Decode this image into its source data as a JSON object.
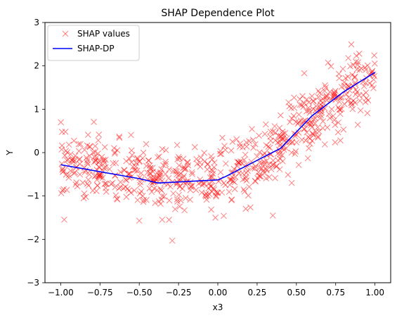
{
  "chart_data": {
    "type": "scatter",
    "title": "SHAP Dependence Plot",
    "xlabel": "x3",
    "ylabel": "Y",
    "xlim": [
      -1.1,
      1.1
    ],
    "ylim": [
      -3,
      3
    ],
    "xticks": [
      -1.0,
      -0.75,
      -0.5,
      -0.25,
      0.0,
      0.25,
      0.5,
      0.75,
      1.0
    ],
    "xtick_labels": [
      "−1.00",
      "−0.75",
      "−0.50",
      "−0.25",
      "0.00",
      "0.25",
      "0.50",
      "0.75",
      "1.00"
    ],
    "yticks": [
      -3,
      -2,
      -1,
      0,
      1,
      2,
      3
    ],
    "ytick_labels": [
      "−3",
      "−2",
      "−1",
      "0",
      "1",
      "2",
      "3"
    ],
    "grid": false,
    "legend_position": "top-left",
    "series": [
      {
        "name": "SHAP values",
        "kind": "scatter",
        "marker": "x",
        "color": "#ff0000",
        "opacity": 0.5,
        "trend": {
          "x": [
            -1.0,
            -0.75,
            -0.5,
            -0.38,
            -0.25,
            0.0,
            0.1,
            0.25,
            0.38,
            0.5,
            0.75,
            1.0
          ],
          "y": [
            -0.28,
            -0.42,
            -0.58,
            -0.68,
            -0.68,
            -0.62,
            -0.4,
            -0.15,
            0.1,
            0.55,
            1.2,
            1.85
          ]
        },
        "noise": 0.36,
        "count": 700,
        "outliers": [
          {
            "x": -0.29,
            "y": -2.03
          },
          {
            "x": -0.5,
            "y": -1.57
          },
          {
            "x": 0.35,
            "y": -1.45
          },
          {
            "x": 0.55,
            "y": 1.83
          },
          {
            "x": 0.83,
            "y": 2.18
          },
          {
            "x": 0.9,
            "y": 2.28
          },
          {
            "x": 0.78,
            "y": 0.28
          },
          {
            "x": -0.97,
            "y": 0.48
          },
          {
            "x": 0.47,
            "y": -0.7
          }
        ]
      },
      {
        "name": "SHAP-DP",
        "kind": "line",
        "color": "#0000ff",
        "x": [
          -1.0,
          -0.5,
          -0.38,
          0.0,
          0.05,
          0.4,
          0.6,
          0.8,
          1.0
        ],
        "y": [
          -0.28,
          -0.6,
          -0.7,
          -0.63,
          -0.55,
          0.1,
          0.85,
          1.4,
          1.85
        ]
      }
    ]
  }
}
